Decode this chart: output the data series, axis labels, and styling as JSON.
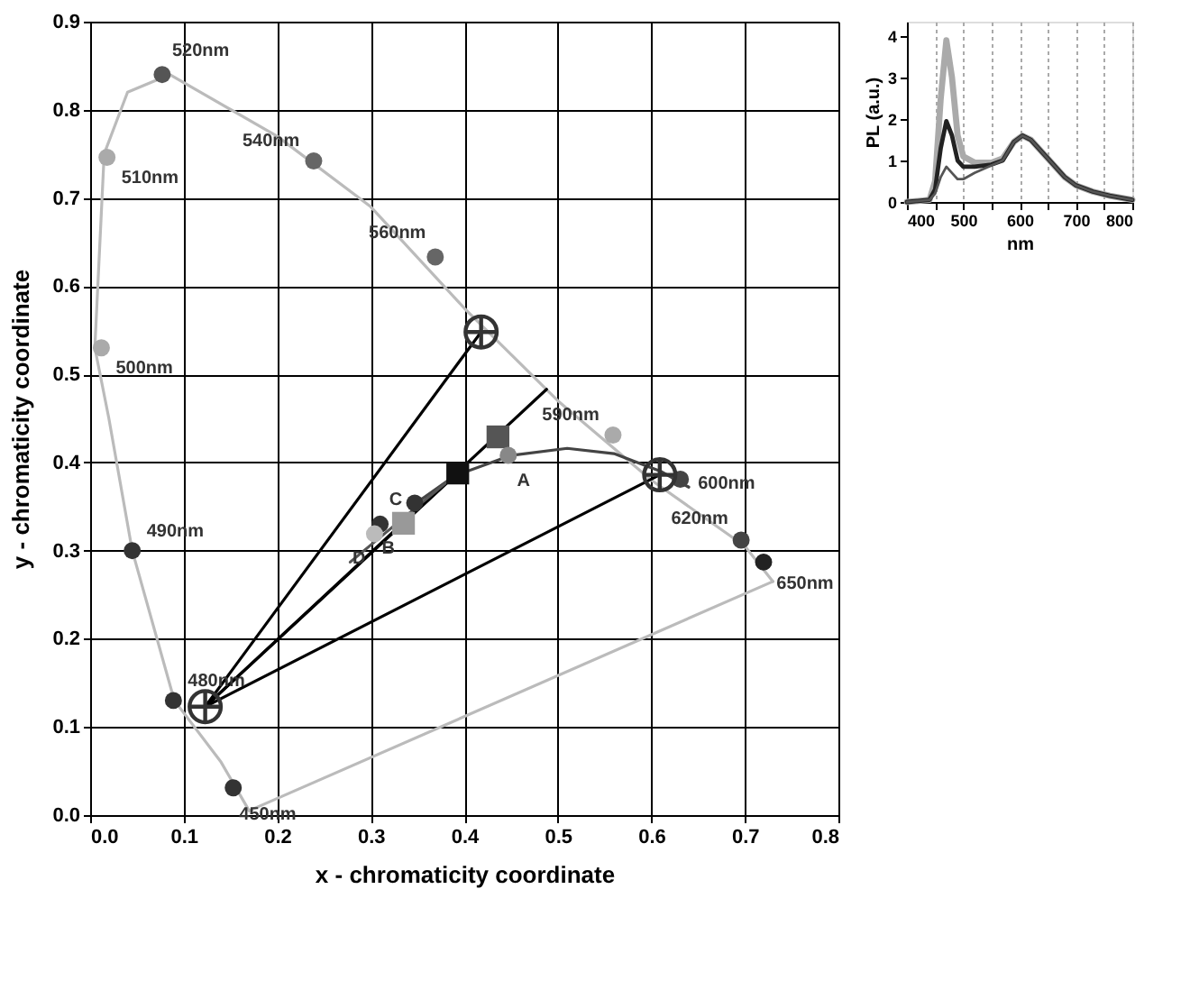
{
  "chart_data": [
    {
      "type": "scatter",
      "xlabel": "x - chromaticity coordinate",
      "ylabel": "y - chromaticity coordinate",
      "xlim": [
        0,
        0.8
      ],
      "ylim": [
        0,
        0.9
      ],
      "grid": true,
      "xticks": [
        {
          "value": 0,
          "label": "0.0"
        },
        {
          "value": 0.1,
          "label": "0.1"
        },
        {
          "value": 0.2,
          "label": "0.2"
        },
        {
          "value": 0.3,
          "label": "0.3"
        },
        {
          "value": 0.4,
          "label": "0.4"
        },
        {
          "value": 0.5,
          "label": "0.5"
        },
        {
          "value": 0.6,
          "label": "0.6"
        },
        {
          "value": 0.7,
          "label": "0.7"
        },
        {
          "value": 0.8,
          "label": "0.8"
        }
      ],
      "yticks": [
        {
          "value": 0,
          "label": "0.0"
        },
        {
          "value": 0.1,
          "label": "0.1"
        },
        {
          "value": 0.2,
          "label": "0.2"
        },
        {
          "value": 0.3,
          "label": "0.3"
        },
        {
          "value": 0.4,
          "label": "0.4"
        },
        {
          "value": 0.5,
          "label": "0.5"
        },
        {
          "value": 0.6,
          "label": "0.6"
        },
        {
          "value": 0.7,
          "label": "0.7"
        },
        {
          "value": 0.8,
          "label": "0.8"
        },
        {
          "value": 0.9,
          "label": "0.9"
        }
      ],
      "series": [
        {
          "type": "line",
          "color": "#bbbbbb",
          "marker": "none",
          "x": [
            0.17,
            0.73
          ],
          "values": [
            0.005,
            0.265
          ]
        },
        {
          "type": "line",
          "color": "#bbbbbb",
          "marker": "none",
          "x": [
            0.005,
            0.02,
            0.045,
            0.09,
            0.14,
            0.17
          ],
          "values": [
            0.53,
            0.45,
            0.3,
            0.13,
            0.06,
            0.005
          ]
        },
        {
          "type": "line",
          "color": "#bbbbbb",
          "marker": "none",
          "x": [
            0.005,
            0.015,
            0.04,
            0.085,
            0.2,
            0.3,
            0.4,
            0.5,
            0.6,
            0.7,
            0.73
          ],
          "values": [
            0.53,
            0.75,
            0.82,
            0.84,
            0.77,
            0.69,
            0.575,
            0.47,
            0.38,
            0.305,
            0.265
          ]
        },
        {
          "type": "scatter",
          "marker": "circle",
          "x": [
            0.153,
            0.089,
            0.045,
            0.012,
            0.018,
            0.077,
            0.239,
            0.369,
            0.559,
            0.631,
            0.696,
            0.72
          ],
          "values": [
            0.031,
            0.13,
            0.3,
            0.53,
            0.746,
            0.84,
            0.742,
            0.633,
            0.431,
            0.381,
            0.312,
            0.287
          ],
          "colors": [
            "#333333",
            "#333333",
            "#333333",
            "#aaaaaa",
            "#aaaaaa",
            "#555555",
            "#666666",
            "#666666",
            "#aaaaaa",
            "#444444",
            "#444444",
            "#222222"
          ]
        },
        {
          "type": "line",
          "color": "#000000",
          "marker": "none",
          "x": [
            0.123,
            0.418
          ],
          "values": [
            0.123,
            0.548
          ]
        },
        {
          "type": "line",
          "color": "#000000",
          "marker": "none",
          "x": [
            0.123,
            0.393
          ],
          "values": [
            0.123,
            0.388
          ]
        },
        {
          "type": "line",
          "color": "#000000",
          "marker": "none",
          "x": [
            0.123,
            0.488
          ],
          "values": [
            0.123,
            0.483
          ]
        },
        {
          "type": "line",
          "color": "#000000",
          "marker": "none",
          "x": [
            0.123,
            0.609
          ],
          "values": [
            0.123,
            0.386
          ]
        },
        {
          "type": "line",
          "color": "#444444",
          "marker": "none",
          "x": [
            0.35,
            0.39,
            0.45,
            0.51,
            0.56,
            0.61,
            0.64
          ],
          "values": [
            0.355,
            0.385,
            0.408,
            0.416,
            0.41,
            0.39,
            0.372
          ]
        },
        {
          "type": "line",
          "color": "#555555",
          "marker": "none",
          "x": [
            0.278,
            0.393
          ],
          "values": [
            0.287,
            0.388
          ]
        },
        {
          "type": "scatter",
          "marker": "square",
          "x": [
            0.436,
            0.393,
            0.335
          ],
          "values": [
            0.429,
            0.388,
            0.331
          ],
          "colors": [
            "#555555",
            "#111111",
            "#999999"
          ]
        },
        {
          "type": "scatter",
          "marker": "circle",
          "x": [
            0.447,
            0.31,
            0.347,
            0.304
          ],
          "values": [
            0.408,
            0.33,
            0.354,
            0.319
          ],
          "colors": [
            "#888888",
            "#333333",
            "#333333",
            "#bbbbbb"
          ]
        },
        {
          "type": "scatter",
          "marker": "cross",
          "color": "#333333",
          "x": [
            0.123,
            0.418,
            0.609
          ],
          "values": [
            0.123,
            0.548,
            0.386
          ]
        }
      ],
      "annotations": [
        {
          "text": "450nm",
          "x": 0.153,
          "y": 0.031
        },
        {
          "text": "480nm",
          "x": 0.089,
          "y": 0.13
        },
        {
          "text": "490nm",
          "x": 0.045,
          "y": 0.3
        },
        {
          "text": "500nm",
          "x": 0.012,
          "y": 0.53
        },
        {
          "text": "510nm",
          "x": 0.018,
          "y": 0.746
        },
        {
          "text": "520nm",
          "x": 0.077,
          "y": 0.84
        },
        {
          "text": "540nm",
          "x": 0.239,
          "y": 0.742
        },
        {
          "text": "560nm",
          "x": 0.369,
          "y": 0.633
        },
        {
          "text": "590nm",
          "x": 0.559,
          "y": 0.431
        },
        {
          "text": "600nm",
          "x": 0.631,
          "y": 0.381
        },
        {
          "text": "620nm",
          "x": 0.696,
          "y": 0.312
        },
        {
          "text": "650nm",
          "x": 0.72,
          "y": 0.287
        },
        {
          "text": "A",
          "x": 0.447,
          "y": 0.408
        },
        {
          "text": "B",
          "x": 0.335,
          "y": 0.331
        },
        {
          "text": "C",
          "x": 0.31,
          "y": 0.33
        },
        {
          "text": "D",
          "x": 0.304,
          "y": 0.319
        }
      ]
    },
    {
      "type": "line",
      "xlabel": "nm",
      "ylabel": "PL (a.u.)",
      "xlim": [
        400,
        800
      ],
      "ylim": [
        0,
        4.35
      ],
      "grid": "x",
      "line_style": "solid",
      "xticks": [
        400,
        {
          "value": 450,
          "label": null
        },
        500,
        {
          "value": 550,
          "label": null
        },
        600,
        {
          "value": 650,
          "label": null
        },
        700,
        {
          "value": 750,
          "label": null
        },
        800
      ],
      "yticks": [
        0,
        1,
        2,
        3,
        4
      ],
      "x": [
        400,
        440,
        450,
        460,
        470,
        480,
        490,
        500,
        520,
        550,
        570,
        590,
        605,
        620,
        650,
        680,
        700,
        730,
        760,
        800
      ],
      "series": [
        {
          "color": "#aaaaaa",
          "values": [
            0,
            0.05,
            0.5,
            2.5,
            3.9,
            3.0,
            1.6,
            1.1,
            0.95,
            0.95,
            1.05,
            1.45,
            1.6,
            1.5,
            1.05,
            0.6,
            0.4,
            0.25,
            0.15,
            0.05
          ]
        },
        {
          "color": "#222222",
          "values": [
            0,
            0.05,
            0.3,
            1.3,
            1.95,
            1.6,
            1.0,
            0.85,
            0.85,
            0.9,
            1.0,
            1.45,
            1.6,
            1.5,
            1.05,
            0.6,
            0.4,
            0.25,
            0.15,
            0.05
          ]
        },
        {
          "color": "#555555",
          "values": [
            0,
            0.05,
            0.2,
            0.6,
            0.85,
            0.7,
            0.55,
            0.55,
            0.7,
            0.88,
            1.0,
            1.45,
            1.6,
            1.5,
            1.05,
            0.6,
            0.4,
            0.25,
            0.15,
            0.05
          ]
        }
      ]
    }
  ]
}
